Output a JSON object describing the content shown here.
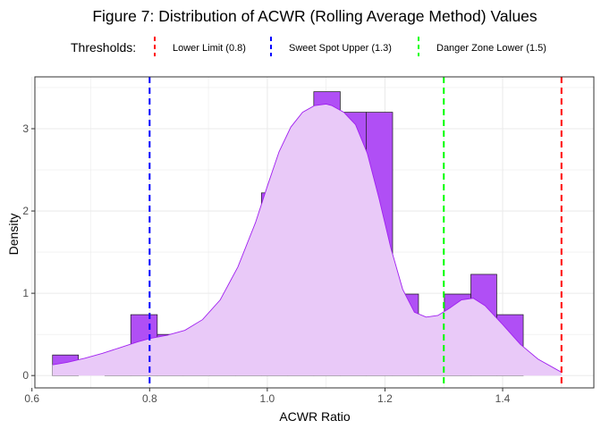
{
  "chart_data": {
    "type": "histogram",
    "title": "Figure 7: Distribution of ACWR (Rolling Average Method) Values",
    "xlabel": "ACWR Ratio",
    "ylabel": "Density",
    "xlim": [
      0.605,
      1.555
    ],
    "ylim": [
      -0.15,
      3.63
    ],
    "xticks": [
      0.6,
      0.8,
      1.0,
      1.2,
      1.4
    ],
    "xtick_labels": [
      "0.6",
      "0.8",
      "1.0",
      "1.2",
      "1.4"
    ],
    "yticks": [
      0,
      1,
      2,
      3
    ],
    "ytick_labels": [
      "0",
      "1",
      "2",
      "3"
    ],
    "grid": true,
    "legend_position": "top",
    "legend_title": "Thresholds:",
    "bin_width": 0.0444,
    "bins": [
      {
        "x0": 0.635,
        "x1": 0.679,
        "density": 0.25
      },
      {
        "x0": 0.679,
        "x1": 0.724,
        "density": 0.0
      },
      {
        "x0": 0.724,
        "x1": 0.768,
        "density": 0.25
      },
      {
        "x0": 0.768,
        "x1": 0.813,
        "density": 0.74
      },
      {
        "x0": 0.813,
        "x1": 0.857,
        "density": 0.5
      },
      {
        "x0": 0.857,
        "x1": 0.902,
        "density": 0.5
      },
      {
        "x0": 0.902,
        "x1": 0.946,
        "density": 0.5
      },
      {
        "x0": 0.946,
        "x1": 0.99,
        "density": 1.23
      },
      {
        "x0": 0.99,
        "x1": 1.035,
        "density": 2.22
      },
      {
        "x0": 1.035,
        "x1": 1.079,
        "density": 2.71
      },
      {
        "x0": 1.079,
        "x1": 1.124,
        "density": 3.45
      },
      {
        "x0": 1.124,
        "x1": 1.168,
        "density": 3.2
      },
      {
        "x0": 1.168,
        "x1": 1.213,
        "density": 3.2
      },
      {
        "x0": 1.213,
        "x1": 1.257,
        "density": 0.99
      },
      {
        "x0": 1.257,
        "x1": 1.301,
        "density": 0.25
      },
      {
        "x0": 1.301,
        "x1": 1.346,
        "density": 0.99
      },
      {
        "x0": 1.346,
        "x1": 1.39,
        "density": 1.23
      },
      {
        "x0": 1.39,
        "x1": 1.435,
        "density": 0.74
      }
    ],
    "density_curve": {
      "x": [
        0.635,
        0.66,
        0.69,
        0.72,
        0.75,
        0.78,
        0.8,
        0.83,
        0.86,
        0.89,
        0.92,
        0.95,
        0.98,
        1.0,
        1.02,
        1.04,
        1.06,
        1.08,
        1.1,
        1.11,
        1.13,
        1.15,
        1.17,
        1.19,
        1.21,
        1.23,
        1.25,
        1.27,
        1.29,
        1.31,
        1.33,
        1.35,
        1.37,
        1.4,
        1.43,
        1.46,
        1.49,
        1.5
      ],
      "y": [
        0.13,
        0.16,
        0.21,
        0.27,
        0.34,
        0.41,
        0.45,
        0.49,
        0.55,
        0.68,
        0.92,
        1.32,
        1.86,
        2.3,
        2.72,
        3.02,
        3.2,
        3.28,
        3.3,
        3.28,
        3.2,
        3.05,
        2.7,
        2.15,
        1.55,
        1.05,
        0.77,
        0.71,
        0.73,
        0.82,
        0.92,
        0.94,
        0.85,
        0.62,
        0.38,
        0.2,
        0.08,
        0.04
      ]
    },
    "thresholds": [
      {
        "name": "Lower Limit (0.8)",
        "value": 0.8,
        "color": "#ff0000"
      },
      {
        "name": "Sweet Spot Upper (1.3)",
        "value": 1.3,
        "color": "#0000ff"
      },
      {
        "name": "Danger Zone Lower (1.5)",
        "value": 1.5,
        "color": "#00ff00"
      }
    ],
    "threshold_lines": [
      {
        "value": 0.8,
        "color": "#0000ff"
      },
      {
        "value": 1.3,
        "color": "#00ff00"
      },
      {
        "value": 1.5,
        "color": "#ff0000"
      }
    ],
    "colors": {
      "bar_fill": "#b04ff5",
      "bar_stroke": "#1a1a1a",
      "density_fill": "#e9c9f8",
      "density_line": "#a020f0",
      "panel_border": "#333333",
      "grid": "#ebebeb"
    }
  }
}
